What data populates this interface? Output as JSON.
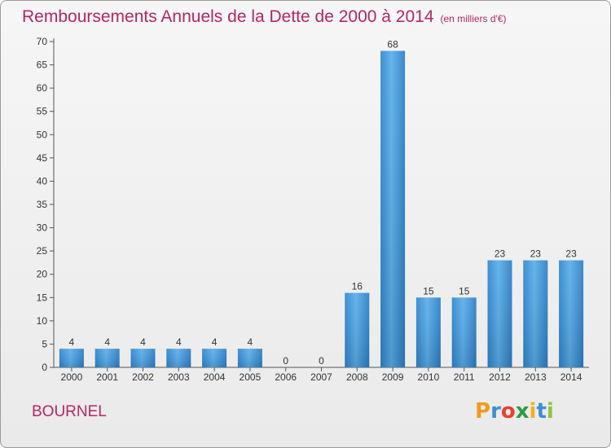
{
  "header": {
    "title": "Remboursements Annuels de la Dette de 2000 à 2014",
    "unit": "(en milliers d'€)"
  },
  "footer": {
    "place": "BOURNEL",
    "logo_letters": [
      "P",
      "r",
      "o",
      "x",
      "i",
      "t",
      "i"
    ],
    "logo_colors": [
      "#f29a1e",
      "#3a8fd6",
      "#e8412c",
      "#2c9b48",
      "#f2b21e",
      "#3a8fd6",
      "#8cc63f"
    ]
  },
  "chart_data": {
    "type": "bar",
    "title": "Remboursements Annuels de la Dette de 2000 à 2014",
    "categories": [
      "2000",
      "2001",
      "2002",
      "2003",
      "2004",
      "2005",
      "2006",
      "2007",
      "2008",
      "2009",
      "2010",
      "2011",
      "2012",
      "2013",
      "2014"
    ],
    "values": [
      4,
      4,
      4,
      4,
      4,
      4,
      0,
      0,
      16,
      68,
      15,
      15,
      23,
      23,
      23
    ],
    "data_labels": [
      "4",
      "4",
      "4",
      "4",
      "4",
      "4",
      "0",
      "0",
      "16",
      "68",
      "15",
      "15",
      "23",
      "23",
      "23"
    ],
    "yticks": [
      "0",
      "5",
      "10",
      "15",
      "20",
      "25",
      "30",
      "35",
      "40",
      "45",
      "50",
      "55",
      "60",
      "65",
      "70"
    ],
    "ylim": [
      0,
      70
    ],
    "grid": false,
    "bar_color": "#4aa0e0"
  }
}
